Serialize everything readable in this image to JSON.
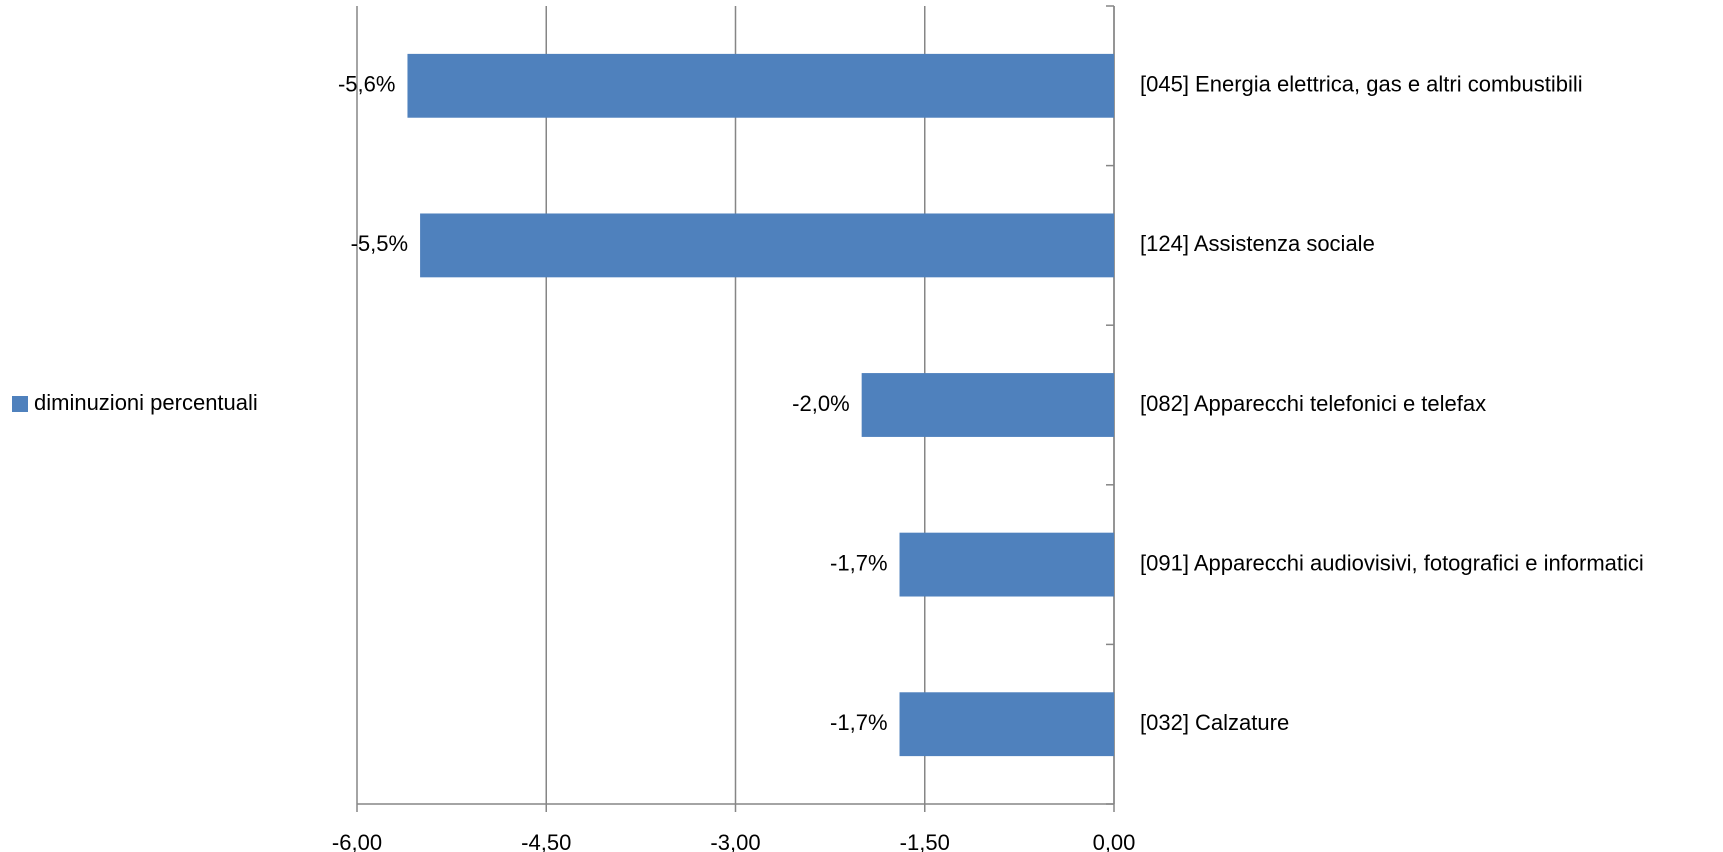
{
  "chart_data": {
    "type": "bar",
    "orientation": "horizontal",
    "categories": [
      "[045] Energia elettrica, gas e altri combustibili",
      "[124] Assistenza sociale",
      "[082] Apparecchi telefonici e telefax",
      "[091] Apparecchi audiovisivi, fotografici e informatici",
      "[032] Calzature"
    ],
    "series": [
      {
        "name": "diminuzioni percentuali",
        "color": "#4f81bd",
        "values": [
          -5.6,
          -5.5,
          -2.0,
          -1.7,
          -1.7
        ],
        "value_labels": [
          "-5,6%",
          "-5,5%",
          "-2,0%",
          "-1,7%",
          "-1,7%"
        ]
      }
    ],
    "xlim": [
      -6,
      0
    ],
    "xticks": [
      {
        "value": -6,
        "label": "-6,00"
      },
      {
        "value": -4.5,
        "label": "-4,50"
      },
      {
        "value": -3,
        "label": "-3,00"
      },
      {
        "value": -1.5,
        "label": "-1,50"
      },
      {
        "value": 0,
        "label": "0,00"
      }
    ],
    "grid": true,
    "legend": "left"
  }
}
